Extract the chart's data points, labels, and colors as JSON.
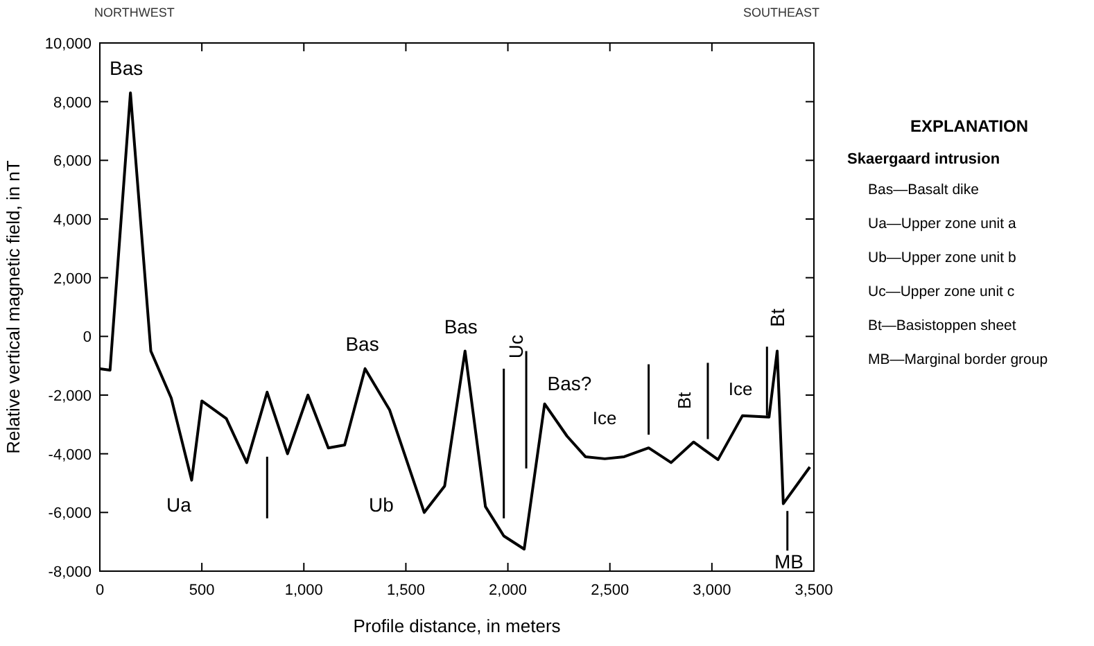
{
  "chart_data": {
    "type": "line",
    "xlabel": "Profile distance, in meters",
    "ylabel": "Relative vertical magnetic field, in nT",
    "xlim": [
      0,
      3500
    ],
    "xticks": [
      0,
      {
        "value": 500,
        "label": "500"
      },
      {
        "value": 1000,
        "label": "1,000"
      },
      {
        "value": 1500,
        "label": "1,500"
      },
      {
        "value": 2000,
        "label": "2,000"
      },
      {
        "value": 2500,
        "label": "2,500"
      },
      {
        "value": 3000,
        "label": "3,000"
      },
      {
        "value": 3500,
        "label": "3,500"
      }
    ],
    "ylim": [
      -8000,
      10000
    ],
    "yticks": [
      {
        "value": -8000,
        "label": "-8,000"
      },
      {
        "value": -6000,
        "label": "-6,000"
      },
      {
        "value": -4000,
        "label": "-4,000"
      },
      {
        "value": -2000,
        "label": "-2,000"
      },
      0,
      {
        "value": 2000,
        "label": "2,000"
      },
      {
        "value": 4000,
        "label": "4,000"
      },
      {
        "value": 6000,
        "label": "6,000"
      },
      {
        "value": 8000,
        "label": "8,000"
      },
      {
        "value": 10000,
        "label": "10,000"
      }
    ],
    "grid": false,
    "series": [
      {
        "color": "#000000",
        "x": [
          0,
          50,
          150,
          250,
          350,
          450,
          500,
          620,
          720,
          820,
          920,
          1020,
          1120,
          1200,
          1300,
          1420,
          1590,
          1690,
          1790,
          1890,
          1980,
          2080,
          2180,
          2290,
          2380,
          2475,
          2570,
          2690,
          2800,
          2910,
          3030,
          3150,
          3280,
          3320,
          3350,
          3480
        ],
        "values": [
          -1100,
          -1150,
          8300,
          -500,
          -2100,
          -4900,
          -2200,
          -2800,
          -4300,
          -1900,
          -4000,
          -2000,
          -3800,
          -3700,
          -1100,
          -2500,
          -6000,
          -5100,
          -500,
          -5800,
          -6800,
          -7250,
          -2300,
          -3400,
          -4100,
          -4170,
          -4100,
          -3800,
          -4300,
          -3600,
          -4200,
          -2700,
          -2750,
          -500,
          -5700,
          -4450
        ]
      },
      {
        "color": "#000000",
        "x": [
          820,
          820
        ],
        "values": [
          -4100,
          -6200
        ]
      },
      {
        "color": "#000000",
        "x": [
          1980,
          1980
        ],
        "values": [
          -1100,
          -6200
        ]
      },
      {
        "color": "#000000",
        "x": [
          2090,
          2090
        ],
        "values": [
          -500,
          -4500
        ]
      },
      {
        "color": "#000000",
        "x": [
          2690,
          2690
        ],
        "values": [
          -950,
          -3350
        ]
      },
      {
        "color": "#000000",
        "x": [
          2980,
          2980
        ],
        "values": [
          -900,
          -3500
        ]
      },
      {
        "color": "#000000",
        "x": [
          3270,
          3270
        ],
        "values": [
          -350,
          -2700
        ]
      },
      {
        "color": "#000000",
        "x": [
          3370,
          3370
        ],
        "values": [
          -5950,
          -7300
        ]
      }
    ],
    "annotations": [
      "NORTHWEST",
      "SOUTHEAST",
      "EXPLANATION",
      "Skaergaard intrusion",
      "Bas—Basalt dike",
      "Ua—Upper zone unit a",
      "Ub—Upper zone unit b",
      "Uc—Upper zone unit c",
      "Bt—Basistoppen sheet",
      "MB—Marginal border group",
      "Ua",
      "Ub",
      "Uc",
      "Ice",
      "Bt",
      "Ice",
      "MB",
      {
        "text": "Bas",
        "x": 150,
        "y": 8300
      },
      {
        "text": "Bas",
        "x": 1300,
        "y": -1100
      },
      {
        "text": "Bas",
        "x": 1790,
        "y": -500
      },
      {
        "text": "Bas?",
        "x": 2180,
        "y": -2300
      },
      {
        "text": "Bt",
        "x": 3320,
        "y": -500
      }
    ]
  }
}
